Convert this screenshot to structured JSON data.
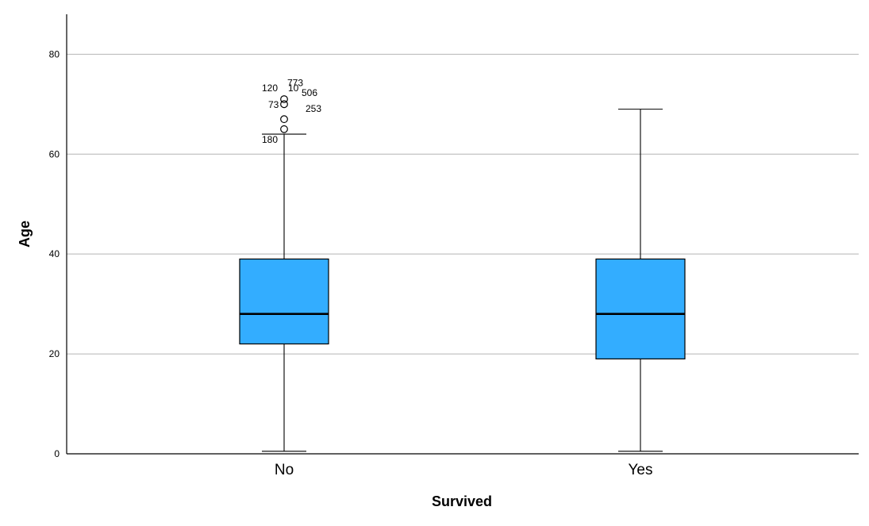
{
  "chart_data": {
    "type": "box",
    "title": "",
    "xlabel": "Survived",
    "ylabel": "Age",
    "ylim": [
      0,
      88
    ],
    "yticks": [
      0,
      20,
      40,
      60,
      80
    ],
    "grid": true,
    "box_color": "#33adff",
    "categories": [
      "No",
      "Yes"
    ],
    "boxes": [
      {
        "category": "No",
        "whisker_low": 0.5,
        "q1": 22,
        "median": 28,
        "q3": 39,
        "whisker_high": 64,
        "outliers": [
          {
            "value": 65,
            "labels": [
              "180"
            ]
          },
          {
            "value": 67,
            "labels": [
              "73",
              "253"
            ]
          },
          {
            "value": 70,
            "labels": [
              "773"
            ]
          },
          {
            "value": 71,
            "labels": [
              "120",
              "10",
              "506"
            ]
          }
        ]
      },
      {
        "category": "Yes",
        "whisker_low": 0.5,
        "q1": 19,
        "median": 28,
        "q3": 39,
        "whisker_high": 69,
        "outliers": []
      }
    ]
  }
}
